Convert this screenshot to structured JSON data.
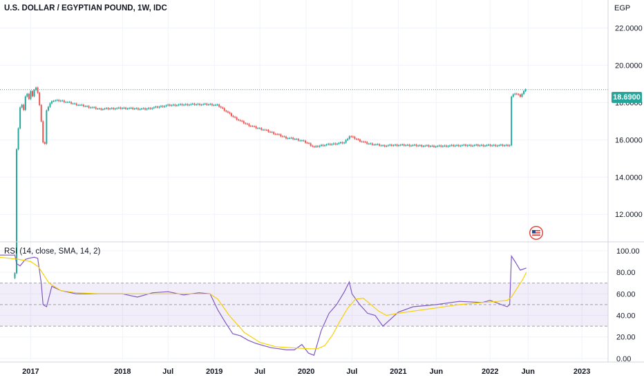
{
  "chart_data": [
    {
      "type": "candlestick",
      "title": "U.S. DOLLAR / EGYPTIAN POUND, 1W, IDC",
      "currency": "EGP",
      "last_price": 18.69,
      "last_price_label": "18.6900",
      "ylim": [
        10.6,
        23.5
      ],
      "y_ticks": [
        "22.0000",
        "20.0000",
        "18.0000",
        "16.0000",
        "14.0000",
        "12.0000"
      ],
      "y_tick_values": [
        22,
        20,
        18,
        16,
        14,
        12
      ],
      "x_ticks": [
        "2017",
        "2018",
        "Jul",
        "2019",
        "Jul",
        "2020",
        "Jul",
        "2021",
        "Jun",
        "2022",
        "Jun",
        "2023"
      ],
      "x_tick_dates": [
        "2017-01-01",
        "2018-01-01",
        "2018-07-01",
        "2019-01-01",
        "2019-07-01",
        "2020-01-01",
        "2020-07-01",
        "2021-01-01",
        "2021-06-01",
        "2022-01-01",
        "2022-06-01",
        "2023-01-01"
      ],
      "x_range": [
        "2016-09-01",
        "2023-04-15"
      ],
      "close_path": [
        [
          "2016-10-30",
          8.88
        ],
        [
          "2016-11-06",
          15.5
        ],
        [
          "2016-11-13",
          16.6
        ],
        [
          "2016-11-20",
          17.7
        ],
        [
          "2016-11-27",
          17.9
        ],
        [
          "2016-12-04",
          17.6
        ],
        [
          "2016-12-11",
          18.3
        ],
        [
          "2016-12-18",
          18.5
        ],
        [
          "2016-12-25",
          18.2
        ],
        [
          "2017-01-01",
          18.6
        ],
        [
          "2017-01-08",
          18.3
        ],
        [
          "2017-01-15",
          18.7
        ],
        [
          "2017-01-22",
          18.8
        ],
        [
          "2017-01-29",
          18.5
        ],
        [
          "2017-02-05",
          17.9
        ],
        [
          "2017-02-12",
          17.0
        ],
        [
          "2017-02-19",
          15.85
        ],
        [
          "2017-02-26",
          15.75
        ],
        [
          "2017-03-05",
          17.6
        ],
        [
          "2017-03-26",
          18.1
        ],
        [
          "2017-05-01",
          18.1
        ],
        [
          "2017-07-01",
          17.9
        ],
        [
          "2017-10-01",
          17.65
        ],
        [
          "2018-01-01",
          17.7
        ],
        [
          "2018-04-01",
          17.65
        ],
        [
          "2018-07-01",
          17.85
        ],
        [
          "2018-10-01",
          17.9
        ],
        [
          "2018-12-15",
          17.9
        ],
        [
          "2019-01-15",
          17.85
        ],
        [
          "2019-02-15",
          17.55
        ],
        [
          "2019-03-15",
          17.25
        ],
        [
          "2019-04-15",
          17.0
        ],
        [
          "2019-05-15",
          16.8
        ],
        [
          "2019-06-15",
          16.65
        ],
        [
          "2019-07-15",
          16.55
        ],
        [
          "2019-08-15",
          16.4
        ],
        [
          "2019-09-15",
          16.25
        ],
        [
          "2019-10-15",
          16.1
        ],
        [
          "2019-11-15",
          16.05
        ],
        [
          "2019-12-15",
          15.95
        ],
        [
          "2020-01-10",
          15.8
        ],
        [
          "2020-02-01",
          15.6
        ],
        [
          "2020-03-01",
          15.7
        ],
        [
          "2020-04-01",
          15.75
        ],
        [
          "2020-05-01",
          15.8
        ],
        [
          "2020-06-01",
          15.85
        ],
        [
          "2020-06-20",
          16.2
        ],
        [
          "2020-07-01",
          16.15
        ],
        [
          "2020-08-01",
          15.95
        ],
        [
          "2020-09-01",
          15.8
        ],
        [
          "2020-10-01",
          15.75
        ],
        [
          "2020-11-01",
          15.68
        ],
        [
          "2021-01-01",
          15.72
        ],
        [
          "2021-03-01",
          15.7
        ],
        [
          "2021-06-01",
          15.65
        ],
        [
          "2021-09-01",
          15.7
        ],
        [
          "2022-01-01",
          15.7
        ],
        [
          "2022-03-10",
          15.7
        ],
        [
          "2022-03-20",
          15.72
        ],
        [
          "2022-03-27",
          18.3
        ],
        [
          "2022-04-10",
          18.5
        ],
        [
          "2022-05-01",
          18.35
        ],
        [
          "2022-05-15",
          18.6
        ],
        [
          "2022-05-25",
          18.69
        ]
      ]
    },
    {
      "type": "line",
      "title": "RSI (14, close, SMA, 14, 2)",
      "ylim": [
        -2,
        107
      ],
      "y_ticks": [
        "100.00",
        "80.00",
        "60.00",
        "40.00",
        "20.00",
        "0.00"
      ],
      "y_tick_values": [
        100,
        80,
        60,
        40,
        20,
        0
      ],
      "bands": [
        30,
        50,
        70
      ],
      "series": [
        {
          "color": "#7e57c2",
          "points": [
            [
              "2016-09-01",
              96
            ],
            [
              "2016-10-30",
              96
            ],
            [
              "2016-11-06",
              88
            ],
            [
              "2016-11-20",
              86
            ],
            [
              "2016-12-11",
              92
            ],
            [
              "2016-12-25",
              93
            ],
            [
              "2017-01-15",
              94
            ],
            [
              "2017-01-29",
              93
            ],
            [
              "2017-02-12",
              70
            ],
            [
              "2017-02-19",
              50
            ],
            [
              "2017-03-05",
              48
            ],
            [
              "2017-03-26",
              67
            ],
            [
              "2017-05-01",
              63
            ],
            [
              "2017-07-01",
              60
            ],
            [
              "2017-10-01",
              60
            ],
            [
              "2018-01-01",
              60
            ],
            [
              "2018-03-01",
              57
            ],
            [
              "2018-05-01",
              61
            ],
            [
              "2018-07-01",
              62
            ],
            [
              "2018-09-01",
              59
            ],
            [
              "2018-11-01",
              61
            ],
            [
              "2018-12-15",
              60
            ],
            [
              "2019-01-15",
              45
            ],
            [
              "2019-02-15",
              33
            ],
            [
              "2019-03-15",
              23
            ],
            [
              "2019-04-15",
              21
            ],
            [
              "2019-05-15",
              17
            ],
            [
              "2019-06-15",
              14
            ],
            [
              "2019-07-15",
              12
            ],
            [
              "2019-08-15",
              10
            ],
            [
              "2019-09-15",
              9
            ],
            [
              "2019-10-15",
              8
            ],
            [
              "2019-11-15",
              8
            ],
            [
              "2019-12-15",
              13
            ],
            [
              "2020-01-10",
              5
            ],
            [
              "2020-02-01",
              3
            ],
            [
              "2020-03-01",
              26
            ],
            [
              "2020-04-01",
              42
            ],
            [
              "2020-05-01",
              50
            ],
            [
              "2020-06-01",
              62
            ],
            [
              "2020-06-20",
              71
            ],
            [
              "2020-07-01",
              60
            ],
            [
              "2020-08-01",
              50
            ],
            [
              "2020-09-01",
              42
            ],
            [
              "2020-10-01",
              40
            ],
            [
              "2020-11-01",
              30
            ],
            [
              "2021-01-01",
              43
            ],
            [
              "2021-03-01",
              48
            ],
            [
              "2021-06-01",
              50
            ],
            [
              "2021-09-01",
              53
            ],
            [
              "2021-12-01",
              52
            ],
            [
              "2022-01-01",
              54
            ],
            [
              "2022-03-10",
              48
            ],
            [
              "2022-03-20",
              50
            ],
            [
              "2022-03-27",
              95
            ],
            [
              "2022-04-10",
              90
            ],
            [
              "2022-05-01",
              82
            ],
            [
              "2022-05-25",
              84
            ]
          ]
        },
        {
          "color": "#f5d200",
          "points": [
            [
              "2016-09-01",
              94
            ],
            [
              "2016-11-15",
              92
            ],
            [
              "2017-01-01",
              90
            ],
            [
              "2017-02-01",
              85
            ],
            [
              "2017-03-15",
              70
            ],
            [
              "2017-05-01",
              63
            ],
            [
              "2017-07-01",
              61
            ],
            [
              "2017-10-01",
              60
            ],
            [
              "2018-01-01",
              60
            ],
            [
              "2018-07-01",
              60
            ],
            [
              "2018-12-15",
              60
            ],
            [
              "2019-01-15",
              55
            ],
            [
              "2019-03-01",
              40
            ],
            [
              "2019-05-01",
              24
            ],
            [
              "2019-07-01",
              15
            ],
            [
              "2019-09-01",
              11
            ],
            [
              "2019-11-01",
              10
            ],
            [
              "2020-01-15",
              9
            ],
            [
              "2020-02-15",
              9
            ],
            [
              "2020-03-15",
              12
            ],
            [
              "2020-04-15",
              22
            ],
            [
              "2020-05-15",
              35
            ],
            [
              "2020-06-15",
              47
            ],
            [
              "2020-07-15",
              55
            ],
            [
              "2020-08-15",
              56
            ],
            [
              "2020-09-15",
              50
            ],
            [
              "2020-10-15",
              44
            ],
            [
              "2020-11-15",
              40
            ],
            [
              "2021-01-01",
              42
            ],
            [
              "2021-03-01",
              44
            ],
            [
              "2021-06-01",
              47
            ],
            [
              "2021-09-01",
              50
            ],
            [
              "2021-12-01",
              52
            ],
            [
              "2022-02-01",
              53
            ],
            [
              "2022-03-10",
              54
            ],
            [
              "2022-03-27",
              57
            ],
            [
              "2022-04-15",
              64
            ],
            [
              "2022-05-10",
              73
            ],
            [
              "2022-05-25",
              80
            ]
          ]
        }
      ]
    }
  ],
  "colors": {
    "up": "#26a69a",
    "down": "#ef5350",
    "rsi_line": "#7e57c2",
    "rsi_ma": "#f5d200",
    "rsi_band": "#7e57c2",
    "grid": "#f0f3fa",
    "price_line": "#26a69a"
  },
  "flag_icon": "us-flag-icon"
}
